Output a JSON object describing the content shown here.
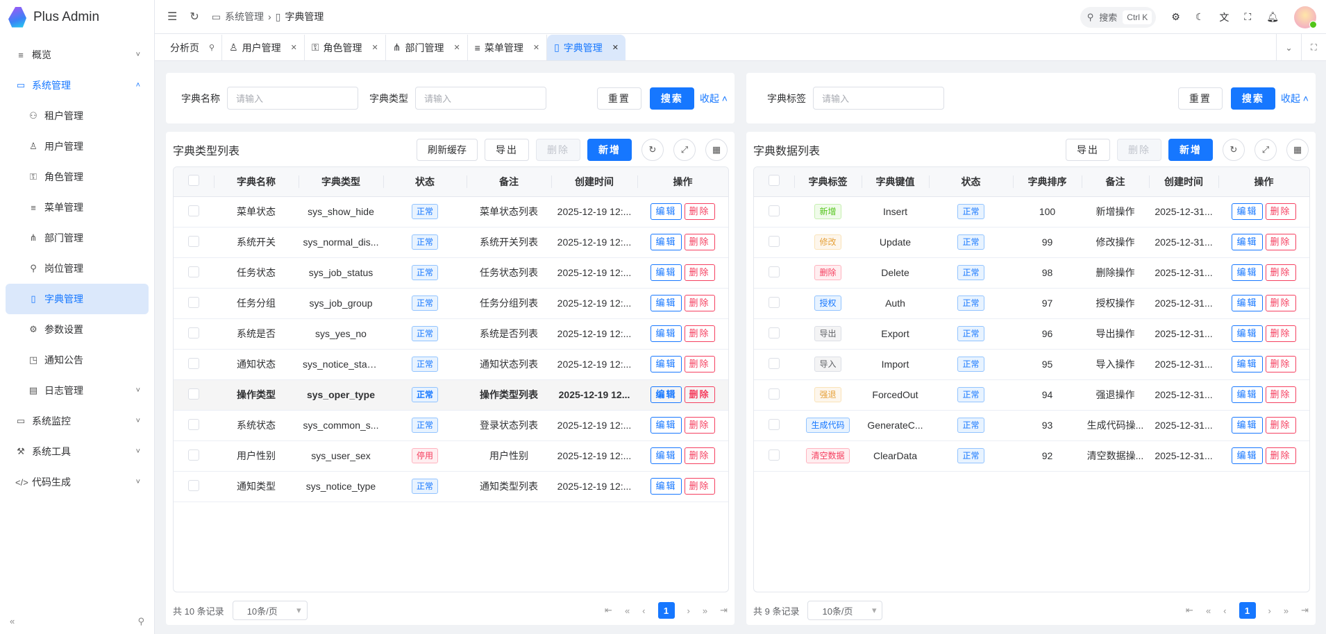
{
  "app": {
    "name": "Plus Admin"
  },
  "sidebar": {
    "items": [
      {
        "label": "概览",
        "icon": "menu-icon",
        "level": 0,
        "chevron": "down"
      },
      {
        "label": "系统管理",
        "icon": "monitor-icon",
        "level": 0,
        "chevron": "up",
        "open": true
      },
      {
        "label": "租户管理",
        "icon": "users-icon",
        "level": 1
      },
      {
        "label": "用户管理",
        "icon": "user-icon",
        "level": 1
      },
      {
        "label": "角色管理",
        "icon": "role-icon",
        "level": 1
      },
      {
        "label": "菜单管理",
        "icon": "menu-icon",
        "level": 1
      },
      {
        "label": "部门管理",
        "icon": "tree-icon",
        "level": 1
      },
      {
        "label": "岗位管理",
        "icon": "post-icon",
        "level": 1
      },
      {
        "label": "字典管理",
        "icon": "book-icon",
        "level": 1,
        "active": true
      },
      {
        "label": "参数设置",
        "icon": "gear-icon",
        "level": 1
      },
      {
        "label": "通知公告",
        "icon": "notice-icon",
        "level": 1
      },
      {
        "label": "日志管理",
        "icon": "log-icon",
        "level": 1,
        "chevron": "down"
      },
      {
        "label": "系统监控",
        "icon": "monitor-icon",
        "level": 0,
        "chevron": "down"
      },
      {
        "label": "系统工具",
        "icon": "wrench-icon",
        "level": 0,
        "chevron": "down"
      },
      {
        "label": "代码生成",
        "icon": "code-icon",
        "level": 0,
        "chevron": "down"
      }
    ]
  },
  "header": {
    "breadcrumb": [
      "系统管理",
      "字典管理"
    ],
    "search_label": "搜索",
    "search_shortcut": "Ctrl K"
  },
  "tabs": [
    {
      "label": "分析页",
      "icon": "pin-icon",
      "pinned": true
    },
    {
      "label": "用户管理",
      "icon": "user-icon"
    },
    {
      "label": "角色管理",
      "icon": "role-icon"
    },
    {
      "label": "部门管理",
      "icon": "tree-icon"
    },
    {
      "label": "菜单管理",
      "icon": "menu-icon"
    },
    {
      "label": "字典管理",
      "icon": "book-icon",
      "active": true
    }
  ],
  "colors": {
    "accent": "#1677ff",
    "danger": "#f53f5f"
  },
  "left": {
    "filters": [
      {
        "label": "字典名称",
        "placeholder": "请输入"
      },
      {
        "label": "字典类型",
        "placeholder": "请输入"
      }
    ],
    "reset": "重置",
    "search": "搜索",
    "collapse": "收起",
    "title": "字典类型列表",
    "refresh_cache": "刷新缓存",
    "export": "导出",
    "delete": "删除",
    "add": "新增",
    "columns": [
      "字典名称",
      "字典类型",
      "状态",
      "备注",
      "创建时间",
      "操作"
    ],
    "rows": [
      [
        "菜单状态",
        "sys_show_hide",
        "正常",
        "菜单状态列表",
        "2025-12-19 12:..."
      ],
      [
        "系统开关",
        "sys_normal_dis...",
        "正常",
        "系统开关列表",
        "2025-12-19 12:..."
      ],
      [
        "任务状态",
        "sys_job_status",
        "正常",
        "任务状态列表",
        "2025-12-19 12:..."
      ],
      [
        "任务分组",
        "sys_job_group",
        "正常",
        "任务分组列表",
        "2025-12-19 12:..."
      ],
      [
        "系统是否",
        "sys_yes_no",
        "正常",
        "系统是否列表",
        "2025-12-19 12:..."
      ],
      [
        "通知状态",
        "sys_notice_status",
        "正常",
        "通知状态列表",
        "2025-12-19 12:..."
      ],
      [
        "操作类型",
        "sys_oper_type",
        "正常",
        "操作类型列表",
        "2025-12-19 12..."
      ],
      [
        "系统状态",
        "sys_common_s...",
        "正常",
        "登录状态列表",
        "2025-12-19 12:..."
      ],
      [
        "用户性别",
        "sys_user_sex",
        "停用",
        "用户性别",
        "2025-12-19 12:..."
      ],
      [
        "通知类型",
        "sys_notice_type",
        "正常",
        "通知类型列表",
        "2025-12-19 12:..."
      ]
    ],
    "highlighted_row": 6,
    "edit": "编辑",
    "del": "删除",
    "total": "共 10 条记录",
    "page_size": "10条/页",
    "page": "1"
  },
  "right": {
    "filters": [
      {
        "label": "字典标签",
        "placeholder": "请输入"
      }
    ],
    "reset": "重置",
    "search": "搜索",
    "collapse": "收起",
    "title": "字典数据列表",
    "export": "导出",
    "delete": "删除",
    "add": "新增",
    "columns": [
      "字典标签",
      "字典键值",
      "状态",
      "字典排序",
      "备注",
      "创建时间",
      "操作"
    ],
    "rows": [
      {
        "label": "新增",
        "tag": "success",
        "value": "Insert",
        "status": "正常",
        "sort": "100",
        "remark": "新增操作",
        "time": "2025-12-31..."
      },
      {
        "label": "修改",
        "tag": "warning",
        "value": "Update",
        "status": "正常",
        "sort": "99",
        "remark": "修改操作",
        "time": "2025-12-31..."
      },
      {
        "label": "删除",
        "tag": "danger",
        "value": "Delete",
        "status": "正常",
        "sort": "98",
        "remark": "删除操作",
        "time": "2025-12-31..."
      },
      {
        "label": "授权",
        "tag": "primary",
        "value": "Auth",
        "status": "正常",
        "sort": "97",
        "remark": "授权操作",
        "time": "2025-12-31..."
      },
      {
        "label": "导出",
        "tag": "info",
        "value": "Export",
        "status": "正常",
        "sort": "96",
        "remark": "导出操作",
        "time": "2025-12-31..."
      },
      {
        "label": "导入",
        "tag": "info",
        "value": "Import",
        "status": "正常",
        "sort": "95",
        "remark": "导入操作",
        "time": "2025-12-31..."
      },
      {
        "label": "强退",
        "tag": "warning",
        "value": "ForcedOut",
        "status": "正常",
        "sort": "94",
        "remark": "强退操作",
        "time": "2025-12-31..."
      },
      {
        "label": "生成代码",
        "tag": "primary",
        "value": "GenerateC...",
        "status": "正常",
        "sort": "93",
        "remark": "生成代码操...",
        "time": "2025-12-31..."
      },
      {
        "label": "清空数据",
        "tag": "danger",
        "value": "ClearData",
        "status": "正常",
        "sort": "92",
        "remark": "清空数据操...",
        "time": "2025-12-31..."
      }
    ],
    "edit": "编辑",
    "del": "删除",
    "total": "共 9 条记录",
    "page_size": "10条/页",
    "page": "1"
  }
}
